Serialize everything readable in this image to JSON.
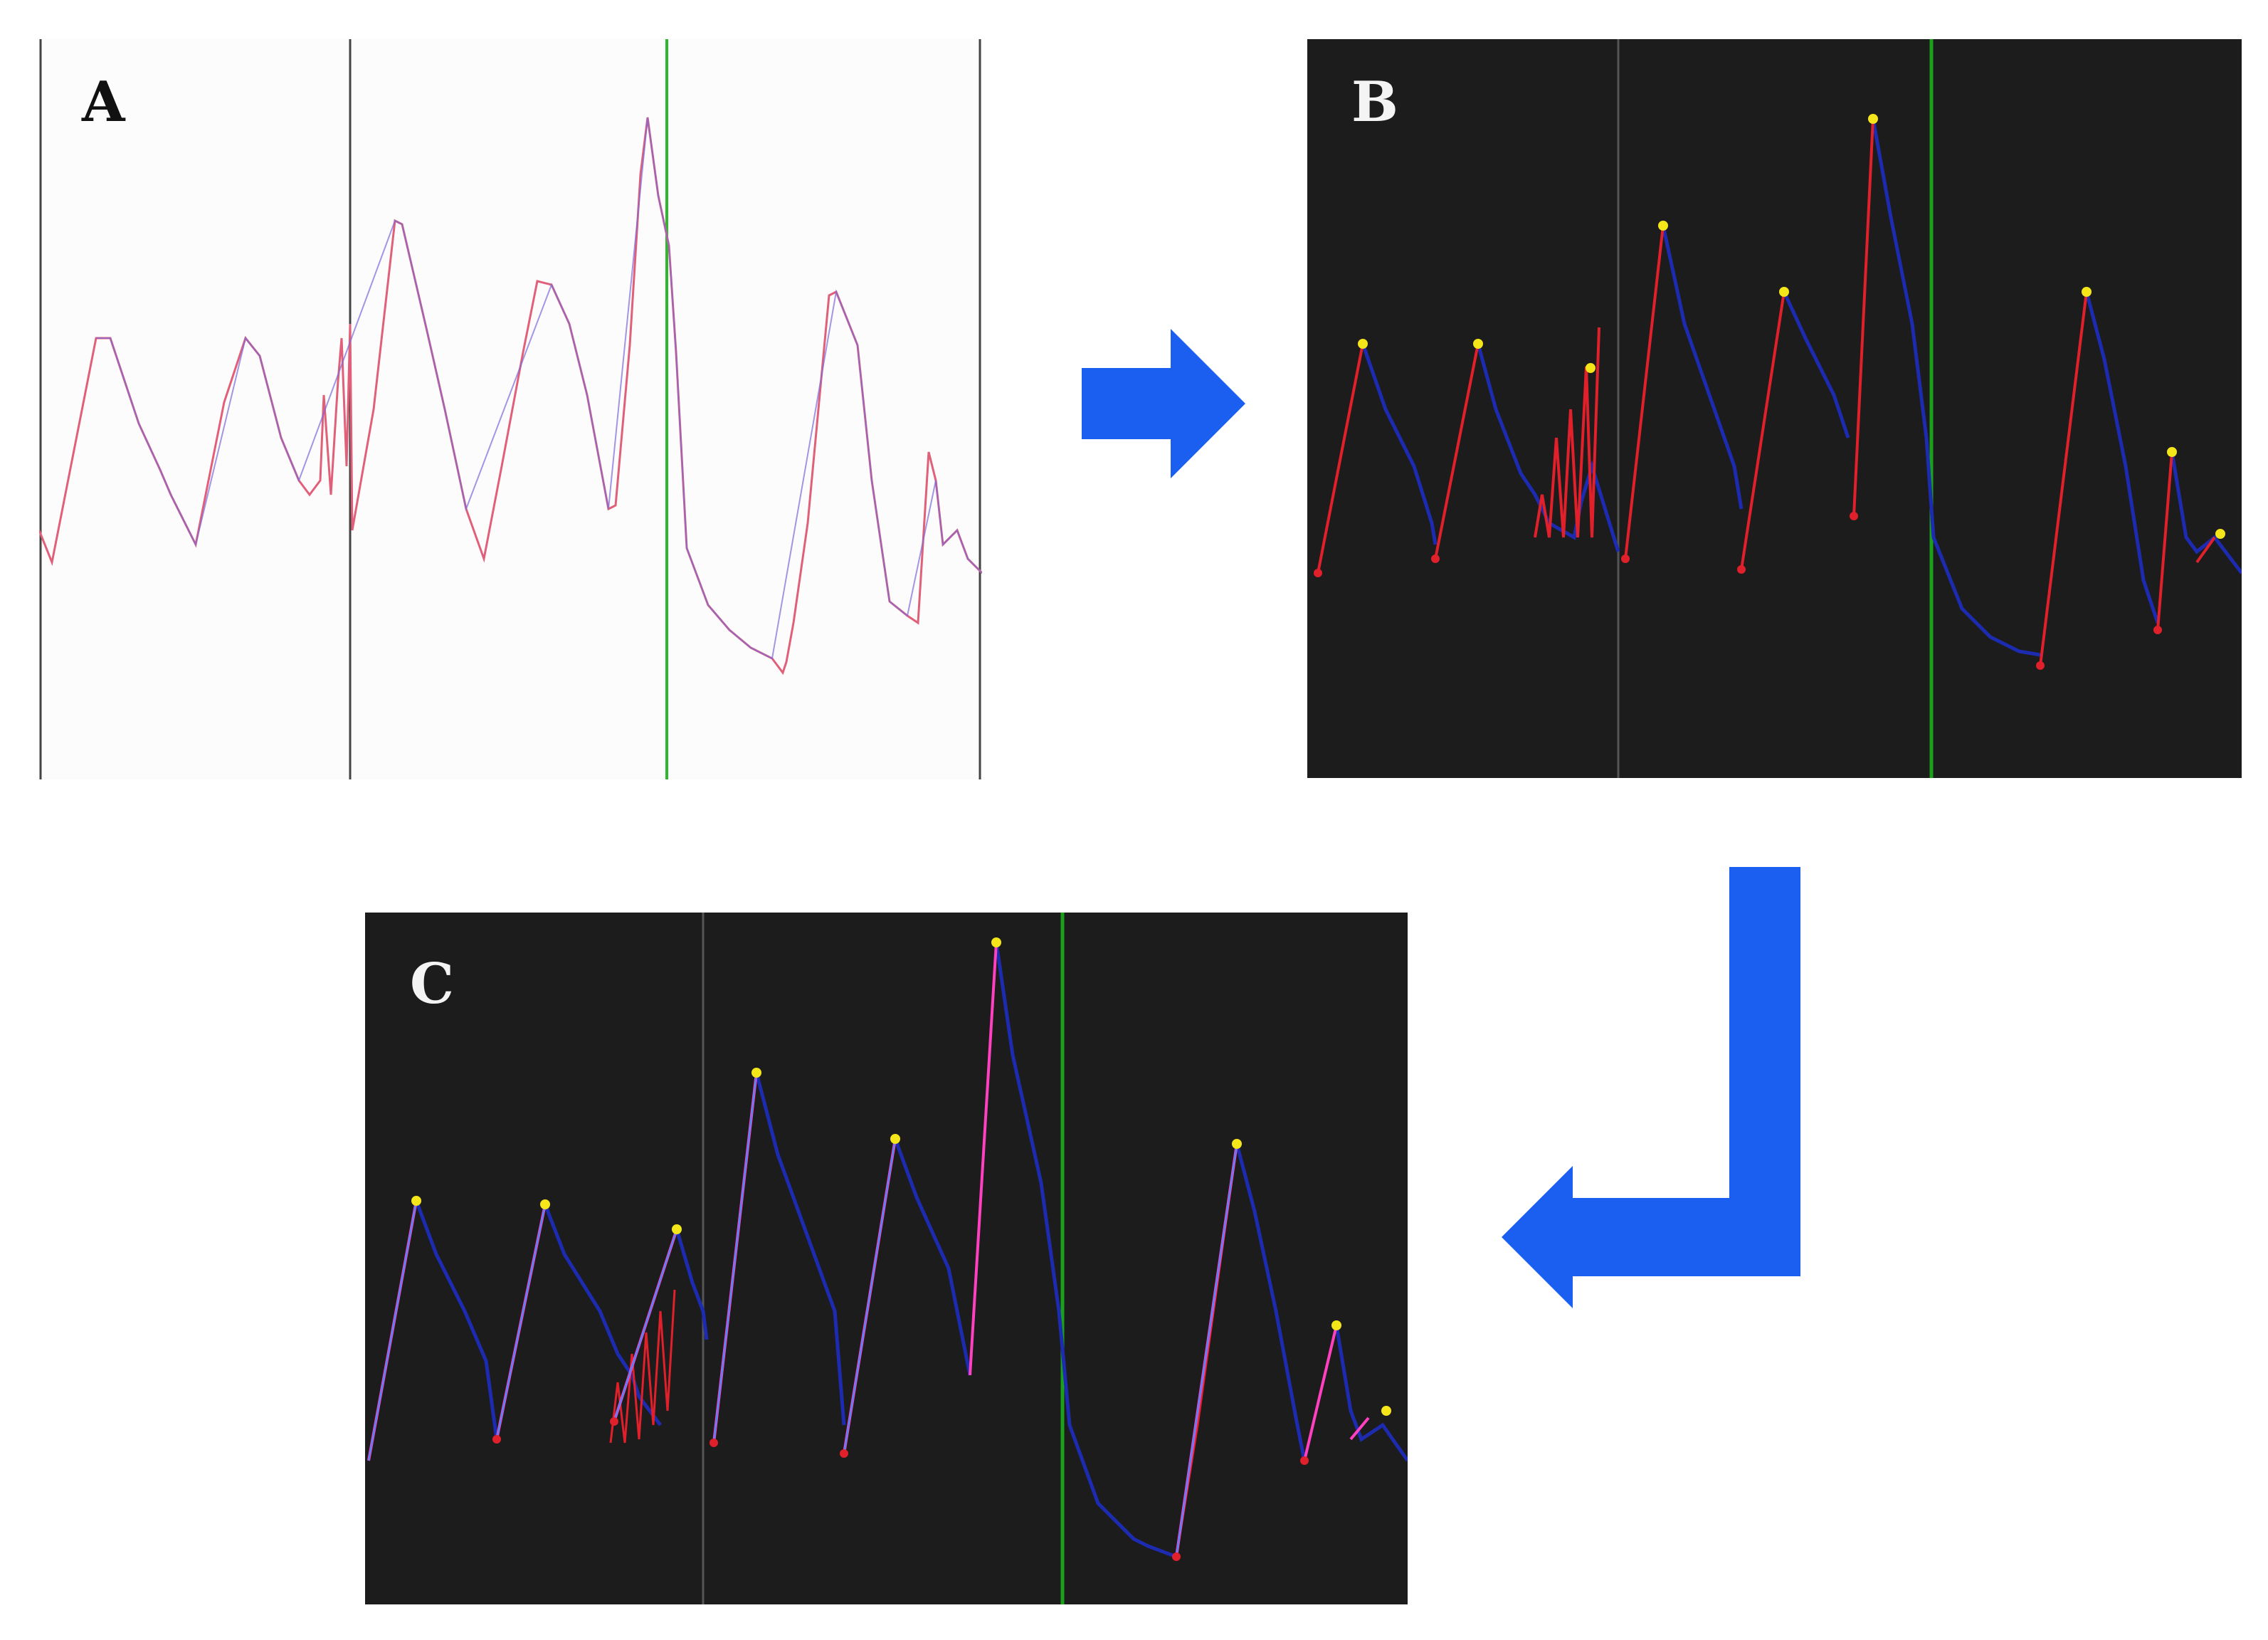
{
  "panels": {
    "a": {
      "label": "A",
      "background": "#fdfcfc",
      "divider_color": "#444444",
      "marker_color": "#2db82d",
      "line_color": "#e0607a",
      "line_color_2": "#7a6ad8"
    },
    "b": {
      "label": "B",
      "background": "#1c1c1c",
      "divider_color": "#555555",
      "marker_color": "#1aa01a",
      "rise_color": "#e0202a",
      "fall_color": "#1d2bb0",
      "peak_color": "#f5e61a",
      "trough_color": "#e0202a"
    },
    "c": {
      "label": "C",
      "background": "#1c1c1c",
      "divider_color": "#555555",
      "marker_color": "#1aa01a",
      "rise_color": "#ff40c0",
      "fit_color": "#3c8cff",
      "fall_color": "#1d2bb0",
      "peak_color": "#f5e61a",
      "trough_color": "#e0202a"
    }
  },
  "arrows": {
    "color": "#1a5ff0",
    "right": {
      "icon": "arrow-right-icon"
    },
    "down_left": {
      "icon": "arrow-down-left-icon"
    }
  }
}
